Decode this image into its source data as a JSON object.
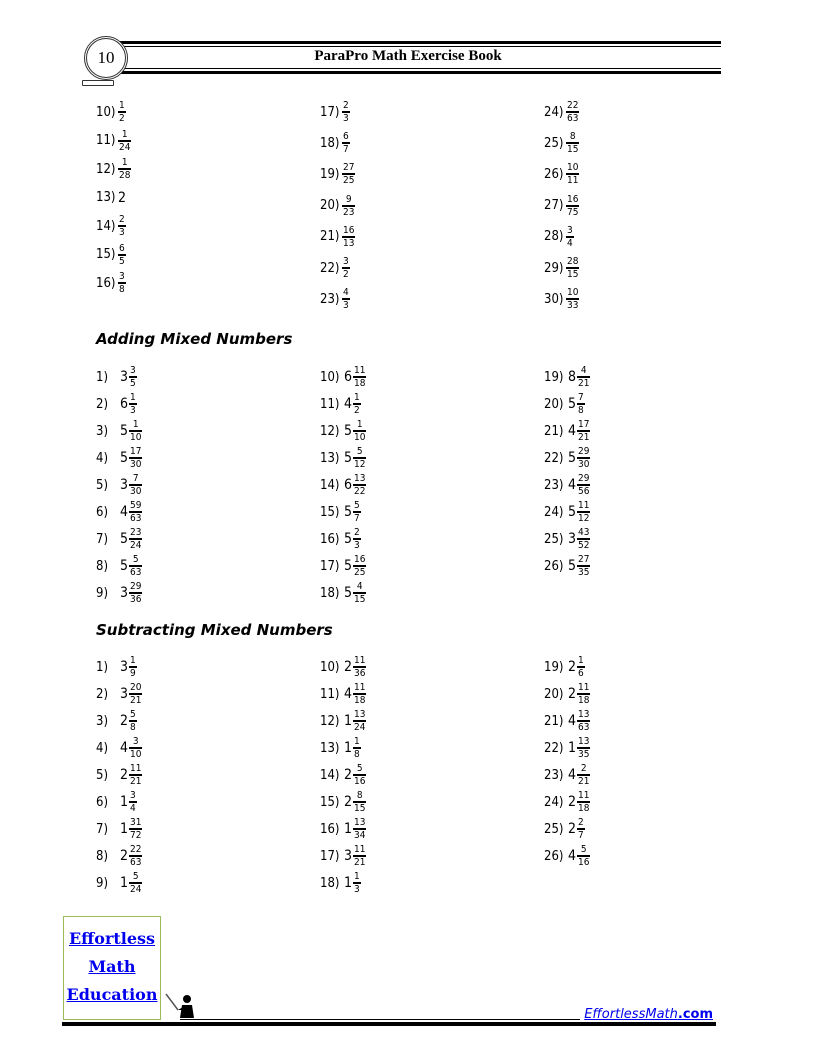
{
  "header": {
    "page_number": "10",
    "title": "ParaPro Math Exercise Book"
  },
  "sections": [
    {
      "heading": "",
      "columns": [
        [
          {
            "n": "10)",
            "w": "",
            "p": "1",
            "q": "2"
          },
          {
            "n": "11)",
            "w": "",
            "p": "1",
            "q": "24"
          },
          {
            "n": "12)",
            "w": "",
            "p": "1",
            "q": "28"
          },
          {
            "n": "13)",
            "w": "2",
            "p": "",
            "q": ""
          },
          {
            "n": "14)",
            "w": "",
            "p": "2",
            "q": "3"
          },
          {
            "n": "15)",
            "w": "",
            "p": "6",
            "q": "5"
          },
          {
            "n": "16)",
            "w": "",
            "p": "3",
            "q": "8"
          }
        ],
        [
          {
            "n": "17)",
            "w": "",
            "p": "2",
            "q": "3"
          },
          {
            "n": "18)",
            "w": "",
            "p": "6",
            "q": "7"
          },
          {
            "n": "19)",
            "w": "",
            "p": "27",
            "q": "25"
          },
          {
            "n": "20)",
            "w": "",
            "p": "9",
            "q": "23"
          },
          {
            "n": "21)",
            "w": "",
            "p": "16",
            "q": "13"
          },
          {
            "n": "22)",
            "w": "",
            "p": "3",
            "q": "2"
          },
          {
            "n": "23)",
            "w": "",
            "p": "4",
            "q": "3"
          }
        ],
        [
          {
            "n": "24)",
            "w": "",
            "p": "22",
            "q": "63"
          },
          {
            "n": "25)",
            "w": "",
            "p": "8",
            "q": "15"
          },
          {
            "n": "26)",
            "w": "",
            "p": "10",
            "q": "11"
          },
          {
            "n": "27)",
            "w": "",
            "p": "16",
            "q": "75"
          },
          {
            "n": "28)",
            "w": "",
            "p": "3",
            "q": "4"
          },
          {
            "n": "29)",
            "w": "",
            "p": "28",
            "q": "15"
          },
          {
            "n": "30)",
            "w": "",
            "p": "10",
            "q": "33"
          }
        ]
      ]
    },
    {
      "heading": "Adding Mixed Numbers",
      "columns": [
        [
          {
            "n": "1)",
            "w": "3",
            "p": "3",
            "q": "5"
          },
          {
            "n": "2)",
            "w": "6",
            "p": "1",
            "q": "3"
          },
          {
            "n": "3)",
            "w": "5",
            "p": "1",
            "q": "10"
          },
          {
            "n": "4)",
            "w": "5",
            "p": "17",
            "q": "30"
          },
          {
            "n": "5)",
            "w": "3",
            "p": "7",
            "q": "30"
          },
          {
            "n": "6)",
            "w": "4",
            "p": "59",
            "q": "63"
          },
          {
            "n": "7)",
            "w": "5",
            "p": "23",
            "q": "24"
          },
          {
            "n": "8)",
            "w": "5",
            "p": "5",
            "q": "63"
          },
          {
            "n": "9)",
            "w": "3",
            "p": "29",
            "q": "36"
          }
        ],
        [
          {
            "n": "10)",
            "w": "6",
            "p": "11",
            "q": "18"
          },
          {
            "n": "11)",
            "w": "4",
            "p": "1",
            "q": "2"
          },
          {
            "n": "12)",
            "w": "5",
            "p": "1",
            "q": "10"
          },
          {
            "n": "13)",
            "w": "5",
            "p": "5",
            "q": "12"
          },
          {
            "n": "14)",
            "w": "6",
            "p": "13",
            "q": "22"
          },
          {
            "n": "15)",
            "w": "5",
            "p": "5",
            "q": "7"
          },
          {
            "n": "16)",
            "w": "5",
            "p": "2",
            "q": "3"
          },
          {
            "n": "17)",
            "w": "5",
            "p": "16",
            "q": "25"
          },
          {
            "n": "18)",
            "w": "5",
            "p": "4",
            "q": "15"
          }
        ],
        [
          {
            "n": "19)",
            "w": "8",
            "p": "4",
            "q": "21"
          },
          {
            "n": "20)",
            "w": "5",
            "p": "7",
            "q": "8"
          },
          {
            "n": "21)",
            "w": "4",
            "p": "17",
            "q": "21"
          },
          {
            "n": "22)",
            "w": "5",
            "p": "29",
            "q": "30"
          },
          {
            "n": "23)",
            "w": "4",
            "p": "29",
            "q": "56"
          },
          {
            "n": "24)",
            "w": "5",
            "p": "11",
            "q": "12"
          },
          {
            "n": "25)",
            "w": "3",
            "p": "43",
            "q": "52"
          },
          {
            "n": "26)",
            "w": "5",
            "p": "27",
            "q": "35"
          }
        ]
      ]
    },
    {
      "heading": "Subtracting Mixed Numbers",
      "columns": [
        [
          {
            "n": "1)",
            "w": "3",
            "p": "1",
            "q": "9"
          },
          {
            "n": "2)",
            "w": "3",
            "p": "20",
            "q": "21"
          },
          {
            "n": "3)",
            "w": "2",
            "p": "5",
            "q": "8"
          },
          {
            "n": "4)",
            "w": "4",
            "p": "3",
            "q": "10"
          },
          {
            "n": "5)",
            "w": "2",
            "p": "11",
            "q": "21"
          },
          {
            "n": "6)",
            "w": "1",
            "p": "3",
            "q": "4"
          },
          {
            "n": "7)",
            "w": "1",
            "p": "31",
            "q": "72"
          },
          {
            "n": "8)",
            "w": "2",
            "p": "22",
            "q": "63"
          },
          {
            "n": "9)",
            "w": "1",
            "p": "5",
            "q": "24"
          }
        ],
        [
          {
            "n": "10)",
            "w": "2",
            "p": "11",
            "q": "36"
          },
          {
            "n": "11)",
            "w": "4",
            "p": "11",
            "q": "18"
          },
          {
            "n": "12)",
            "w": "1",
            "p": "13",
            "q": "24"
          },
          {
            "n": "13)",
            "w": "1",
            "p": "1",
            "q": "8"
          },
          {
            "n": "14)",
            "w": "2",
            "p": "5",
            "q": "16"
          },
          {
            "n": "15)",
            "w": "2",
            "p": "8",
            "q": "15"
          },
          {
            "n": "16)",
            "w": "1",
            "p": "13",
            "q": "34"
          },
          {
            "n": "17)",
            "w": "3",
            "p": "11",
            "q": "21"
          },
          {
            "n": "18)",
            "w": "1",
            "p": "1",
            "q": "3"
          }
        ],
        [
          {
            "n": "19)",
            "w": "2",
            "p": "1",
            "q": "6"
          },
          {
            "n": "20)",
            "w": "2",
            "p": "11",
            "q": "18"
          },
          {
            "n": "21)",
            "w": "4",
            "p": "13",
            "q": "63"
          },
          {
            "n": "22)",
            "w": "1",
            "p": "13",
            "q": "35"
          },
          {
            "n": "23)",
            "w": "4",
            "p": "2",
            "q": "21"
          },
          {
            "n": "24)",
            "w": "2",
            "p": "11",
            "q": "18"
          },
          {
            "n": "25)",
            "w": "2",
            "p": "2",
            "q": "7"
          },
          {
            "n": "26)",
            "w": "4",
            "p": "5",
            "q": "16"
          }
        ]
      ]
    }
  ],
  "footer": {
    "logo_lines": [
      "Effortless",
      "Math",
      "Education"
    ],
    "site_main": "EffortlessMath",
    "site_tld": ".com",
    "link_color": "#0000ee",
    "logo_border": "#9bbb59"
  }
}
